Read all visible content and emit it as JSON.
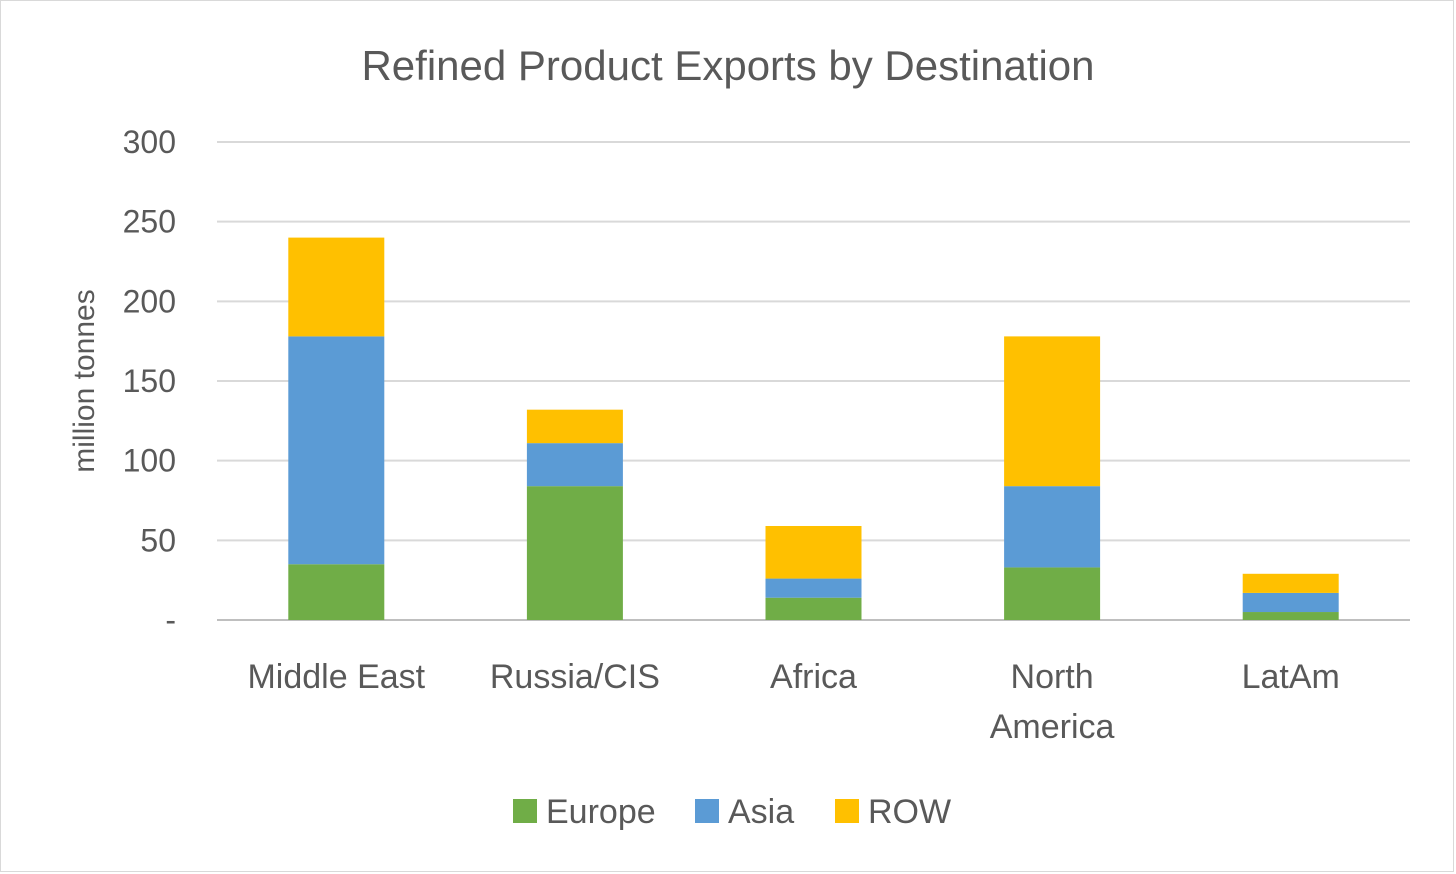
{
  "chart_data": {
    "type": "bar",
    "stacked": true,
    "title": "Refined Product Exports by Destination",
    "ylabel": "million tonnes",
    "xlabel": "",
    "ylim": [
      0,
      300
    ],
    "yticks": [
      0,
      50,
      100,
      150,
      200,
      250,
      300
    ],
    "ytick_labels": [
      "-",
      "50",
      "100",
      "150",
      "200",
      "250",
      "300"
    ],
    "categories": [
      "Middle East",
      "Russia/CIS",
      "Africa",
      "North America",
      "LatAm"
    ],
    "category_lines": [
      [
        "Middle East"
      ],
      [
        "Russia/CIS"
      ],
      [
        "Africa"
      ],
      [
        "North",
        "America"
      ],
      [
        "LatAm"
      ]
    ],
    "series": [
      {
        "name": "Europe",
        "color": "#70AD47",
        "values": [
          35,
          84,
          14,
          33,
          5
        ]
      },
      {
        "name": "Asia",
        "color": "#5B9BD5",
        "values": [
          143,
          27,
          12,
          51,
          12
        ]
      },
      {
        "name": "ROW",
        "color": "#FFC000",
        "values": [
          62,
          21,
          33,
          94,
          12
        ]
      }
    ],
    "grid": true,
    "legend_position": "bottom"
  }
}
